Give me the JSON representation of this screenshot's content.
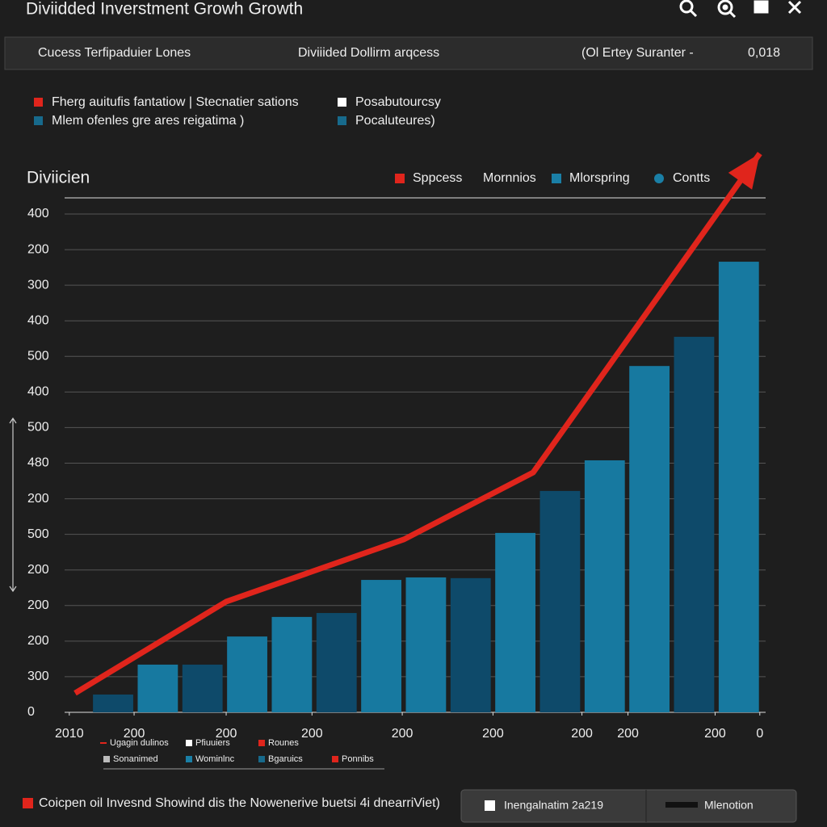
{
  "header": {
    "title": "Diviidded Inverstment Growh Growth"
  },
  "toolbar": {
    "left": "Cucess Terfipaduier Lones",
    "center": "Diviiided Dollirm arqcess",
    "right": "(Ol Ertey Suranter  -",
    "value": "0,018"
  },
  "top_legend": [
    {
      "label": "Fherg auitufis fantatiow | Stecnatier sations",
      "color": "#e0251c"
    },
    {
      "label": "Posabutourcsy",
      "color": "#ffffff"
    },
    {
      "label": "Mlem ofenles gre ares reigatima )",
      "color": "#176a8c"
    },
    {
      "label": "Pocaluteures)",
      "color": "#176a8c"
    }
  ],
  "chart_data": {
    "type": "bar",
    "title": "Diviicien",
    "xlim": [
      -1.085,
      14.6
    ],
    "ylim": [
      0,
      14
    ],
    "xticks": [
      {
        "value": -0.98,
        "label": "2010"
      },
      {
        "value": 0.47,
        "label": "200"
      },
      {
        "value": 2.53,
        "label": "200"
      },
      {
        "value": 4.45,
        "label": "200"
      },
      {
        "value": 6.47,
        "label": "200"
      },
      {
        "value": 8.5,
        "label": "200"
      },
      {
        "value": 10.49,
        "label": "200"
      },
      {
        "value": 11.52,
        "label": "200"
      },
      {
        "value": 13.47,
        "label": "200"
      },
      {
        "value": 14.47,
        "label": "0"
      }
    ],
    "yticks": [
      {
        "value": 0,
        "label": "0"
      },
      {
        "value": 1,
        "label": "300"
      },
      {
        "value": 2,
        "label": "200"
      },
      {
        "value": 3,
        "label": "200"
      },
      {
        "value": 4,
        "label": "200"
      },
      {
        "value": 5,
        "label": "500"
      },
      {
        "value": 6,
        "label": "200"
      },
      {
        "value": 7,
        "label": "480"
      },
      {
        "value": 8,
        "label": "500"
      },
      {
        "value": 9,
        "label": "400"
      },
      {
        "value": 10,
        "label": "500"
      },
      {
        "value": 11,
        "label": "400"
      },
      {
        "value": 12,
        "label": "300"
      },
      {
        "value": 13,
        "label": "200"
      },
      {
        "value": 14,
        "label": "400"
      }
    ],
    "grid": true,
    "series": [
      {
        "name": "Mlorspring",
        "type": "bar",
        "color": "#1a7fa6",
        "colors": [
          "#0e4a6a",
          "#1779a0",
          "#0e4a6a",
          "#1779a0",
          "#1779a0",
          "#0e4a6a",
          "#1779a0",
          "#1779a0",
          "#0e4a6a",
          "#1779a0",
          "#0e4a6a",
          "#1779a0",
          "#1779a0",
          "#0e4a6a",
          "#1779a0"
        ],
        "x": [
          0,
          1,
          2,
          3,
          4,
          5,
          6,
          7,
          8,
          9,
          10,
          11,
          12,
          13,
          14
        ],
        "values": [
          0.5,
          1.34,
          1.34,
          2.13,
          2.68,
          2.79,
          3.72,
          3.79,
          3.77,
          5.04,
          6.22,
          7.08,
          9.73,
          10.55,
          12.66
        ]
      },
      {
        "name": "Sppcess",
        "type": "line",
        "color": "#e0251c",
        "x": [
          -0.85,
          2.53,
          6.51,
          9.4,
          14.47
        ],
        "values": [
          0.54,
          3.11,
          4.86,
          6.74,
          15.7
        ]
      }
    ],
    "extra_legend": [
      {
        "label": "Mornnios"
      },
      {
        "label": "Contts",
        "color": "#1a7fa6"
      }
    ]
  },
  "bottom_legend": [
    {
      "label": "Ugagin dulinos",
      "color": "#e0251c"
    },
    {
      "label": "Pfiuuiers",
      "color": "#ffffff"
    },
    {
      "label": "Rounes",
      "color": "#e0251c"
    },
    {
      "label": "Sonanimed",
      "color": "#bbbbbb"
    },
    {
      "label": "Wominlnc",
      "color": "#1a7fa6"
    },
    {
      "label": "Bgaruics",
      "color": "#176a8c"
    },
    {
      "label": "Ponnibs",
      "color": "#e0251c"
    }
  ],
  "footer": {
    "text": "Coicpen oil Invesnd Showind dis the Nowenerive buetsi 4i dnearriViet)",
    "button1": "Inengalnatim 2a219",
    "button2": "Mlenotion"
  }
}
